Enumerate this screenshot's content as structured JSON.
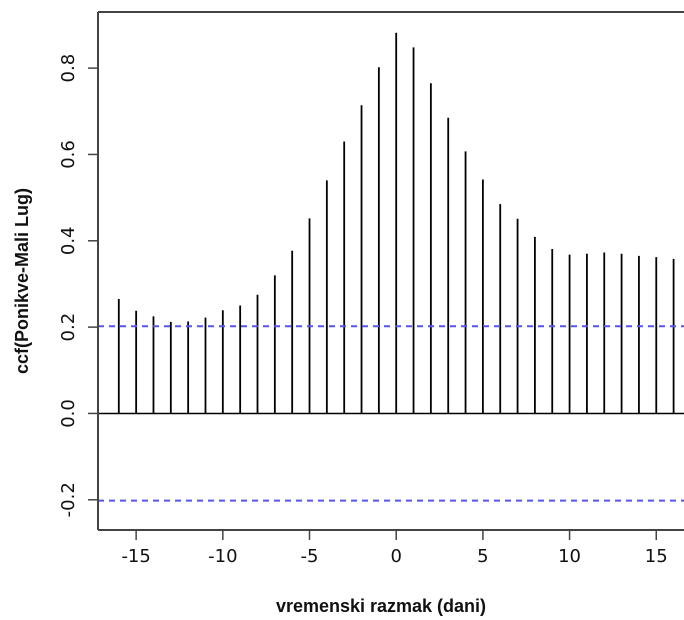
{
  "chart_data": {
    "type": "bar",
    "title": "",
    "xlabel": "vremenski razmak (dani)",
    "ylabel": "ccf(Ponikve-Mali Lug)",
    "x": [
      -16,
      -15,
      -14,
      -13,
      -12,
      -11,
      -10,
      -9,
      -8,
      -7,
      -6,
      -5,
      -4,
      -3,
      -2,
      -1,
      0,
      1,
      2,
      3,
      4,
      5,
      6,
      7,
      8,
      9,
      10,
      11,
      12,
      13,
      14,
      15,
      16
    ],
    "values": [
      0.265,
      0.238,
      0.225,
      0.212,
      0.213,
      0.222,
      0.239,
      0.25,
      0.275,
      0.32,
      0.377,
      0.452,
      0.54,
      0.63,
      0.714,
      0.802,
      0.882,
      0.848,
      0.765,
      0.685,
      0.607,
      0.542,
      0.485,
      0.451,
      0.409,
      0.381,
      0.368,
      0.37,
      0.373,
      0.37,
      0.365,
      0.362,
      0.358
    ],
    "xticks": [
      "-15",
      "-10",
      "-5",
      "0",
      "5",
      "10",
      "15"
    ],
    "xtick_values": [
      -15,
      -10,
      -5,
      0,
      5,
      10,
      15
    ],
    "yticks": [
      "-0.2",
      "0.0",
      "0.2",
      "0.4",
      "0.6",
      "0.8"
    ],
    "ytick_values": [
      -0.2,
      0.0,
      0.2,
      0.4,
      0.6,
      0.8
    ],
    "xlim": [
      -17.2,
      16.6
    ],
    "ylim": [
      -0.27,
      0.93
    ],
    "confidence_limit": 0.202,
    "zero_line": true,
    "grid": false,
    "colors": {
      "bars": "#000000",
      "zero_line": "#000000",
      "confidence_lines": "#5555ee",
      "axis": "#444444"
    }
  }
}
